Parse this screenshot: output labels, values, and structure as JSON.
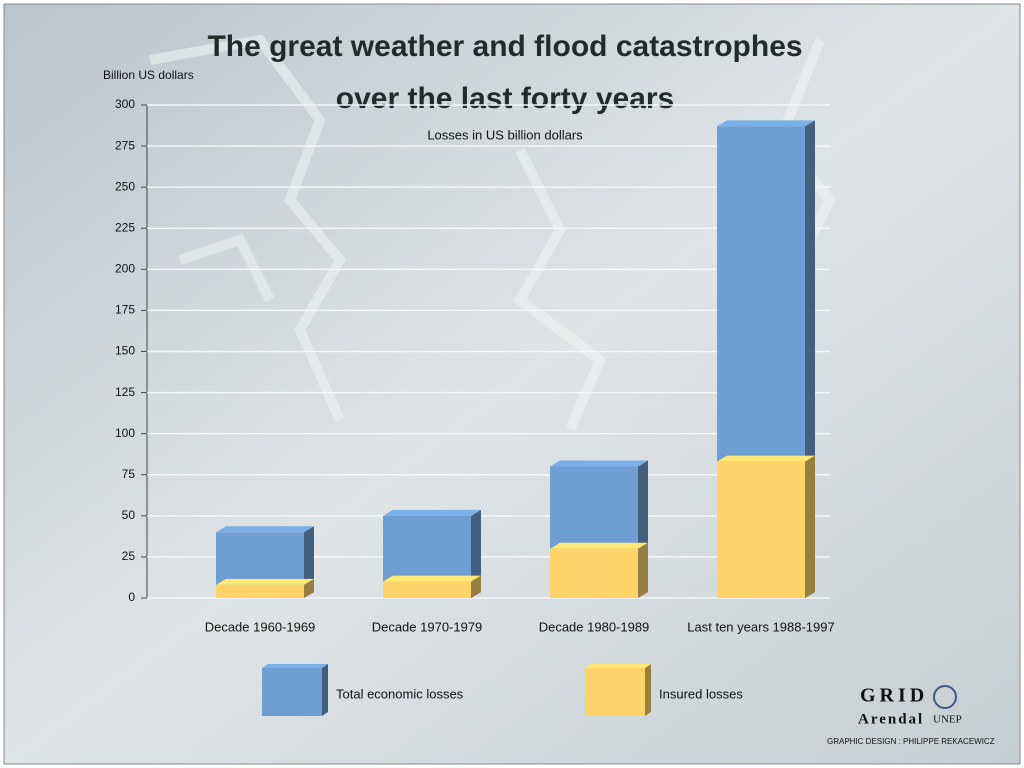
{
  "chart_data": {
    "type": "bar",
    "title": [
      "The great weather and flood catastrophes",
      "over the last forty years"
    ],
    "subtitle": "Losses in US billion dollars",
    "y_label": "Billion US dollars",
    "categories": [
      "Decade 1960-1969",
      "Decade 1970-1979",
      "Decade 1980-1989",
      "Last ten years 1988-1997"
    ],
    "series": [
      {
        "name": "Total economic losses",
        "color": "#6f9fd2",
        "values": [
          40,
          50,
          80,
          287
        ]
      },
      {
        "name": "Insured losses",
        "color": "#fdd36a",
        "values": [
          8,
          10,
          30,
          83
        ]
      }
    ],
    "ylim": [
      0,
      300
    ],
    "yticks": [
      0,
      25,
      50,
      75,
      100,
      125,
      150,
      175,
      200,
      225,
      250,
      275,
      300
    ],
    "grid": true
  },
  "footer": {
    "logo": "GRID",
    "place": "Arendal",
    "org": "UNEP",
    "credit": "GRAPHIC DESIGN : PHILIPPE REKACEWICZ"
  }
}
